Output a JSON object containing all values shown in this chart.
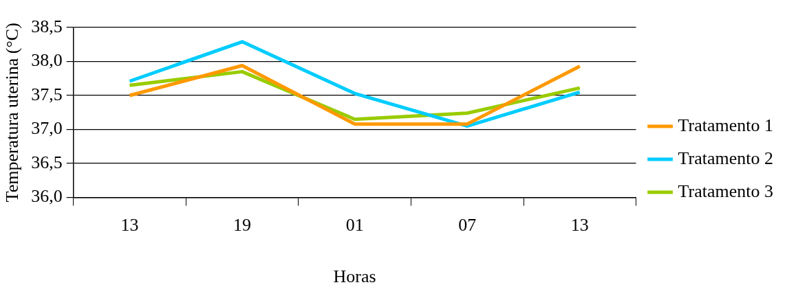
{
  "chart_data": {
    "type": "line",
    "xlabel": "Horas",
    "ylabel": "Temperatura uterina (°C)",
    "categories": [
      "13",
      "19",
      "01",
      "07",
      "13"
    ],
    "series": [
      {
        "name": "Tratamento 1",
        "color": "#ff9900",
        "values": [
          37.5,
          37.94,
          37.08,
          37.08,
          37.93
        ]
      },
      {
        "name": "Tratamento 2",
        "color": "#00ccff",
        "values": [
          37.71,
          38.29,
          37.53,
          37.05,
          37.55
        ]
      },
      {
        "name": "Tratamento 3",
        "color": "#99cc00",
        "values": [
          37.65,
          37.85,
          37.15,
          37.24,
          37.61
        ]
      }
    ],
    "ylim": [
      36.0,
      38.5
    ],
    "yticks": [
      {
        "value": 36.0,
        "label": "36,0"
      },
      {
        "value": 36.5,
        "label": "36,5"
      },
      {
        "value": 37.0,
        "label": "37,0"
      },
      {
        "value": 37.5,
        "label": "37,5"
      },
      {
        "value": 38.0,
        "label": "38,0"
      },
      {
        "value": 38.5,
        "label": "38,5"
      }
    ],
    "grid": "y",
    "legend": "right",
    "marker": "none",
    "line_style": "solid"
  }
}
